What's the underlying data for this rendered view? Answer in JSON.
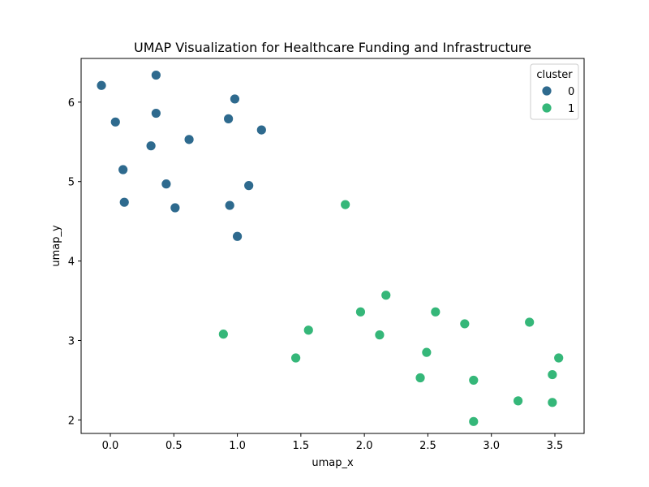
{
  "chart_data": {
    "type": "scatter",
    "title": "UMAP Visualization for Healthcare Funding and Infrastructure",
    "xlabel": "umap_x",
    "ylabel": "umap_y",
    "xlim": [
      -0.23,
      3.73
    ],
    "ylim": [
      1.83,
      6.55
    ],
    "xticks": [
      {
        "value": 0.0,
        "label": "0.0"
      },
      {
        "value": 0.5,
        "label": "0.5"
      },
      {
        "value": 1.0,
        "label": "1.0"
      },
      {
        "value": 1.5,
        "label": "1.5"
      },
      {
        "value": 2.0,
        "label": "2.0"
      },
      {
        "value": 2.5,
        "label": "2.5"
      },
      {
        "value": 3.0,
        "label": "3.0"
      },
      {
        "value": 3.5,
        "label": "3.5"
      }
    ],
    "yticks": [
      {
        "value": 2,
        "label": "2"
      },
      {
        "value": 3,
        "label": "3"
      },
      {
        "value": 4,
        "label": "4"
      },
      {
        "value": 5,
        "label": "5"
      },
      {
        "value": 6,
        "label": "6"
      }
    ],
    "grid": false,
    "legend": {
      "title": "cluster",
      "position": "top-right"
    },
    "series": [
      {
        "name": "0",
        "color": "#2e6a8e",
        "points": [
          [
            -0.07,
            6.21
          ],
          [
            0.36,
            6.34
          ],
          [
            0.04,
            5.75
          ],
          [
            0.36,
            5.86
          ],
          [
            0.98,
            6.04
          ],
          [
            0.93,
            5.79
          ],
          [
            1.19,
            5.65
          ],
          [
            0.32,
            5.45
          ],
          [
            0.62,
            5.53
          ],
          [
            0.1,
            5.15
          ],
          [
            0.44,
            4.97
          ],
          [
            1.09,
            4.95
          ],
          [
            0.11,
            4.74
          ],
          [
            0.51,
            4.67
          ],
          [
            0.94,
            4.7
          ],
          [
            1.0,
            4.31
          ]
        ]
      },
      {
        "name": "1",
        "color": "#35b779",
        "points": [
          [
            1.85,
            4.71
          ],
          [
            2.17,
            3.57
          ],
          [
            1.97,
            3.36
          ],
          [
            2.56,
            3.36
          ],
          [
            2.79,
            3.21
          ],
          [
            3.3,
            3.23
          ],
          [
            0.89,
            3.08
          ],
          [
            1.56,
            3.13
          ],
          [
            2.12,
            3.07
          ],
          [
            1.46,
            2.78
          ],
          [
            2.49,
            2.85
          ],
          [
            3.53,
            2.78
          ],
          [
            2.44,
            2.53
          ],
          [
            2.86,
            2.5
          ],
          [
            3.48,
            2.57
          ],
          [
            3.21,
            2.24
          ],
          [
            3.48,
            2.22
          ],
          [
            2.86,
            1.98
          ]
        ]
      }
    ]
  }
}
